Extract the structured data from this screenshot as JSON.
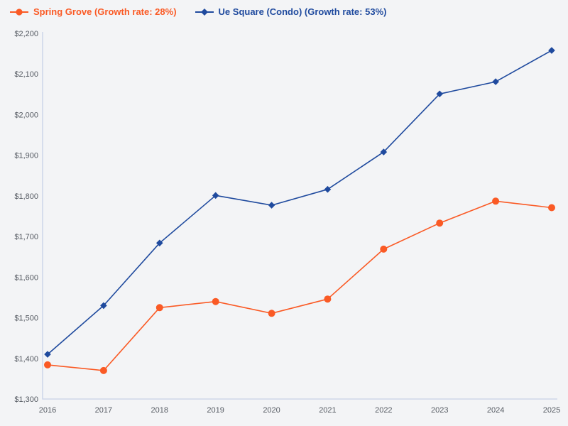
{
  "colors": {
    "background": "#F3F4F6",
    "axis_line": "#C7D1E6",
    "tick_text": "#565B63",
    "spring_grove": "#FA5A25",
    "ue_square": "#1F4A9E"
  },
  "legend": {
    "items": [
      {
        "label": "Spring Grove (Growth rate: 28%)",
        "marker": "circle",
        "color_key": "spring_grove"
      },
      {
        "label": "Ue Square (Condo) (Growth rate: 53%)",
        "marker": "diamond",
        "color_key": "ue_square"
      }
    ]
  },
  "chart_data": {
    "type": "line",
    "title": "",
    "xlabel": "",
    "ylabel": "",
    "x": [
      "2016",
      "2017",
      "2018",
      "2019",
      "2020",
      "2021",
      "2022",
      "2023",
      "2024",
      "2025"
    ],
    "series": [
      {
        "name": "Spring Grove",
        "growth_rate": "28%",
        "marker": "circle",
        "color_key": "spring_grove",
        "values": [
          1384,
          1370,
          1525,
          1540,
          1511,
          1546,
          1669,
          1733,
          1787,
          1771
        ]
      },
      {
        "name": "Ue Square (Condo)",
        "growth_rate": "53%",
        "marker": "diamond",
        "color_key": "ue_square",
        "values": [
          1410,
          1530,
          1684,
          1801,
          1777,
          1816,
          1908,
          2051,
          2081,
          2158
        ]
      }
    ],
    "ylim": [
      1300,
      2200
    ],
    "y_ticks": [
      {
        "value": 1300,
        "label": "$1,300"
      },
      {
        "value": 1400,
        "label": "$1,400"
      },
      {
        "value": 1500,
        "label": "$1,500"
      },
      {
        "value": 1600,
        "label": "$1,600"
      },
      {
        "value": 1700,
        "label": "$1,700"
      },
      {
        "value": 1800,
        "label": "$1,800"
      },
      {
        "value": 1900,
        "label": "$1,900"
      },
      {
        "value": 2000,
        "label": "$2,000"
      },
      {
        "value": 2100,
        "label": "$2,100"
      },
      {
        "value": 2200,
        "label": "$2,200"
      }
    ],
    "grid": false,
    "legend_position": "top-left"
  }
}
